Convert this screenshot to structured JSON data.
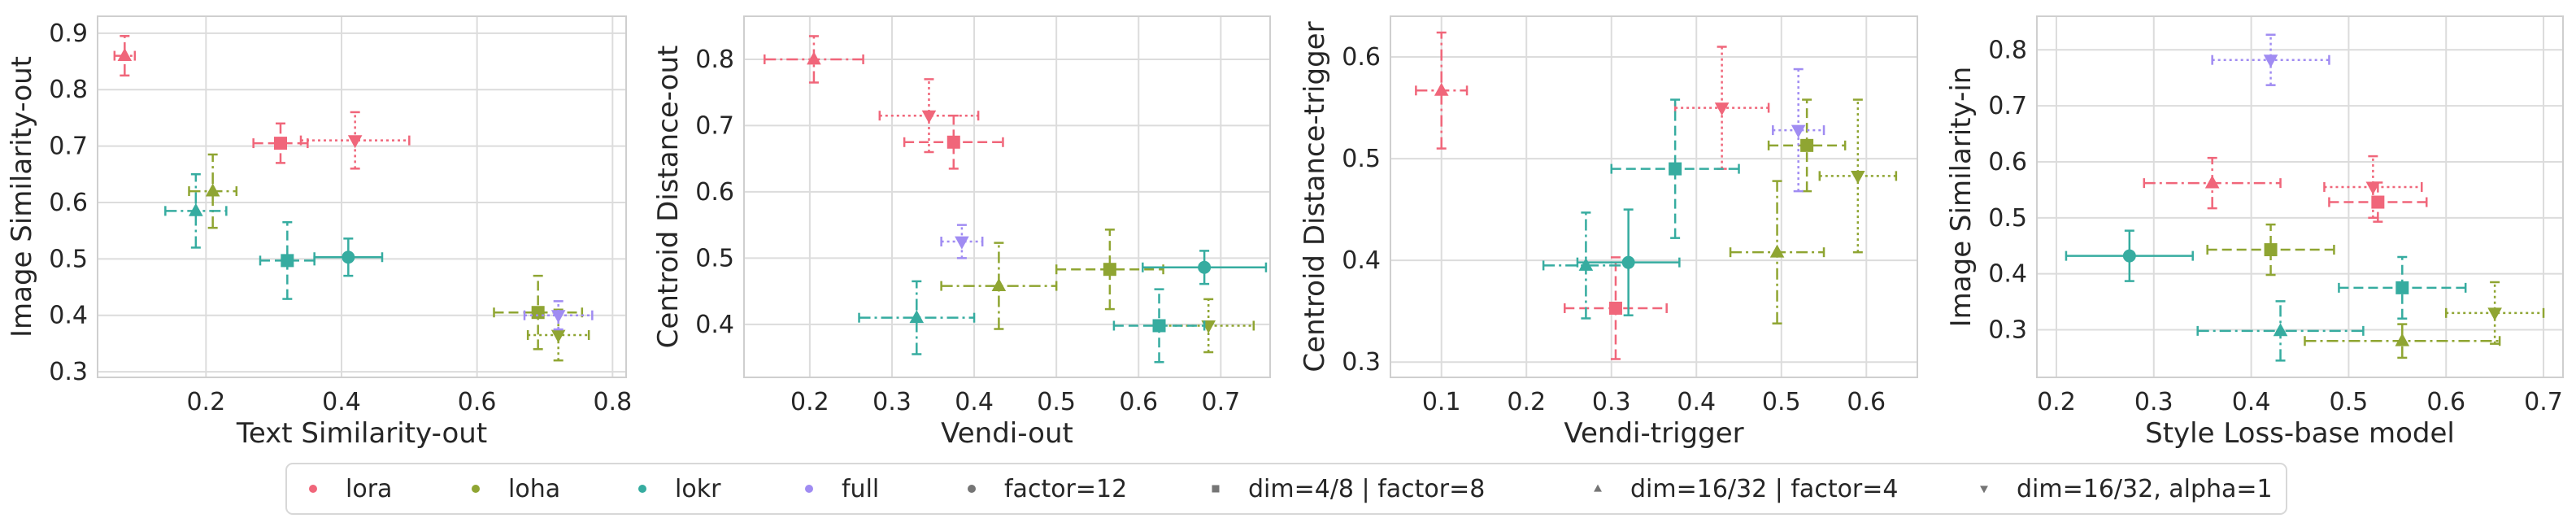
{
  "chart_data": [
    {
      "type": "scatter",
      "xlabel": "Text Similarity-out",
      "ylabel": "Image Similarity-out",
      "xlim": [
        0.04,
        0.82
      ],
      "ylim": [
        0.29,
        0.93
      ],
      "xticks": [
        0.2,
        0.4,
        0.6,
        0.8
      ],
      "yticks": [
        0.3,
        0.4,
        0.5,
        0.6,
        0.7,
        0.8,
        0.9
      ],
      "xtick_labels": [
        "0.2",
        "0.4",
        "0.6",
        "0.8"
      ],
      "ytick_labels": [
        "0.3",
        "0.4",
        "0.5",
        "0.6",
        "0.7",
        "0.8",
        "0.9"
      ],
      "grid": true,
      "points": [
        {
          "method": "lora",
          "config": "dim=16/32 | factor=4",
          "x": 0.08,
          "y": 0.86,
          "xerr": 0.015,
          "yerr": 0.035
        },
        {
          "method": "lora",
          "config": "dim=4/8 | factor=8",
          "x": 0.31,
          "y": 0.705,
          "xerr": 0.04,
          "yerr": 0.035
        },
        {
          "method": "lora",
          "config": "dim=16/32, alpha=1",
          "x": 0.42,
          "y": 0.71,
          "xerr": 0.08,
          "yerr": 0.05
        },
        {
          "method": "loha",
          "config": "dim=16/32 | factor=4",
          "x": 0.21,
          "y": 0.62,
          "xerr": 0.035,
          "yerr": 0.065
        },
        {
          "method": "loha",
          "config": "dim=4/8 | factor=8",
          "x": 0.69,
          "y": 0.405,
          "xerr": 0.065,
          "yerr": 0.065
        },
        {
          "method": "loha",
          "config": "dim=16/32, alpha=1",
          "x": 0.72,
          "y": 0.365,
          "xerr": 0.045,
          "yerr": 0.045
        },
        {
          "method": "lokr",
          "config": "dim=16/32 | factor=4",
          "x": 0.185,
          "y": 0.585,
          "xerr": 0.045,
          "yerr": 0.065
        },
        {
          "method": "lokr",
          "config": "dim=4/8 | factor=8",
          "x": 0.32,
          "y": 0.497,
          "xerr": 0.04,
          "yerr": 0.068
        },
        {
          "method": "lokr",
          "config": "factor=12",
          "x": 0.41,
          "y": 0.503,
          "xerr": 0.05,
          "yerr": 0.033
        },
        {
          "method": "full",
          "config": "dim=16/32, alpha=1",
          "x": 0.72,
          "y": 0.4,
          "xerr": 0.05,
          "yerr": 0.025
        }
      ]
    },
    {
      "type": "scatter",
      "xlabel": "Vendi-out",
      "ylabel": "Centroid Distance-out",
      "xlim": [
        0.12,
        0.76
      ],
      "ylim": [
        0.32,
        0.865
      ],
      "xticks": [
        0.2,
        0.3,
        0.4,
        0.5,
        0.6,
        0.7
      ],
      "yticks": [
        0.4,
        0.5,
        0.6,
        0.7,
        0.8
      ],
      "xtick_labels": [
        "0.2",
        "0.3",
        "0.4",
        "0.5",
        "0.6",
        "0.7"
      ],
      "ytick_labels": [
        "0.4",
        "0.5",
        "0.6",
        "0.7",
        "0.8"
      ],
      "grid": true,
      "points": [
        {
          "method": "lora",
          "config": "dim=16/32 | factor=4",
          "x": 0.205,
          "y": 0.8,
          "xerr": 0.06,
          "yerr": 0.035
        },
        {
          "method": "lora",
          "config": "dim=16/32, alpha=1",
          "x": 0.345,
          "y": 0.715,
          "xerr": 0.06,
          "yerr": 0.055
        },
        {
          "method": "lora",
          "config": "dim=4/8 | factor=8",
          "x": 0.375,
          "y": 0.675,
          "xerr": 0.06,
          "yerr": 0.04
        },
        {
          "method": "loha",
          "config": "dim=16/32 | factor=4",
          "x": 0.43,
          "y": 0.458,
          "xerr": 0.07,
          "yerr": 0.065
        },
        {
          "method": "loha",
          "config": "dim=4/8 | factor=8",
          "x": 0.565,
          "y": 0.483,
          "xerr": 0.065,
          "yerr": 0.06
        },
        {
          "method": "loha",
          "config": "dim=16/32, alpha=1",
          "x": 0.685,
          "y": 0.398,
          "xerr": 0.055,
          "yerr": 0.04
        },
        {
          "method": "lokr",
          "config": "dim=16/32 | factor=4",
          "x": 0.33,
          "y": 0.41,
          "xerr": 0.07,
          "yerr": 0.055
        },
        {
          "method": "lokr",
          "config": "dim=4/8 | factor=8",
          "x": 0.625,
          "y": 0.398,
          "xerr": 0.055,
          "yerr": 0.055
        },
        {
          "method": "lokr",
          "config": "factor=12",
          "x": 0.68,
          "y": 0.486,
          "xerr": 0.075,
          "yerr": 0.025
        },
        {
          "method": "full",
          "config": "dim=16/32, alpha=1",
          "x": 0.385,
          "y": 0.525,
          "xerr": 0.025,
          "yerr": 0.025
        }
      ]
    },
    {
      "type": "scatter",
      "xlabel": "Vendi-trigger",
      "ylabel": "Centroid Distance-trigger",
      "xlim": [
        0.04,
        0.66
      ],
      "ylim": [
        0.285,
        0.64
      ],
      "xticks": [
        0.1,
        0.2,
        0.3,
        0.4,
        0.5,
        0.6
      ],
      "yticks": [
        0.3,
        0.4,
        0.5,
        0.6
      ],
      "xtick_labels": [
        "0.1",
        "0.2",
        "0.3",
        "0.4",
        "0.5",
        "0.6"
      ],
      "ytick_labels": [
        "0.3",
        "0.4",
        "0.5",
        "0.6"
      ],
      "grid": true,
      "points": [
        {
          "method": "lora",
          "config": "dim=16/32 | factor=4",
          "x": 0.1,
          "y": 0.567,
          "xerr": 0.03,
          "yerr": 0.057
        },
        {
          "method": "lora",
          "config": "dim=16/32, alpha=1",
          "x": 0.43,
          "y": 0.55,
          "xerr": 0.055,
          "yerr": 0.06
        },
        {
          "method": "lora",
          "config": "dim=4/8 | factor=8",
          "x": 0.305,
          "y": 0.353,
          "xerr": 0.06,
          "yerr": 0.05
        },
        {
          "method": "loha",
          "config": "dim=16/32 | factor=4",
          "x": 0.495,
          "y": 0.408,
          "xerr": 0.055,
          "yerr": 0.07
        },
        {
          "method": "loha",
          "config": "dim=4/8 | factor=8",
          "x": 0.53,
          "y": 0.513,
          "xerr": 0.045,
          "yerr": 0.045
        },
        {
          "method": "loha",
          "config": "dim=16/32, alpha=1",
          "x": 0.59,
          "y": 0.483,
          "xerr": 0.045,
          "yerr": 0.075
        },
        {
          "method": "lokr",
          "config": "dim=16/32 | factor=4",
          "x": 0.27,
          "y": 0.395,
          "xerr": 0.05,
          "yerr": 0.052
        },
        {
          "method": "lokr",
          "config": "dim=4/8 | factor=8",
          "x": 0.375,
          "y": 0.49,
          "xerr": 0.075,
          "yerr": 0.068
        },
        {
          "method": "lokr",
          "config": "factor=12",
          "x": 0.32,
          "y": 0.398,
          "xerr": 0.06,
          "yerr": 0.052
        },
        {
          "method": "full",
          "config": "dim=16/32, alpha=1",
          "x": 0.52,
          "y": 0.528,
          "xerr": 0.03,
          "yerr": 0.06
        }
      ]
    },
    {
      "type": "scatter",
      "xlabel": "Style Loss-base model",
      "ylabel": "Image Similarity-in",
      "xlim": [
        0.18,
        0.72
      ],
      "ylim": [
        0.215,
        0.86
      ],
      "xticks": [
        0.2,
        0.3,
        0.4,
        0.5,
        0.6,
        0.7
      ],
      "yticks": [
        0.3,
        0.4,
        0.5,
        0.6,
        0.7,
        0.8
      ],
      "xtick_labels": [
        "0.2",
        "0.3",
        "0.4",
        "0.5",
        "0.6",
        "0.7"
      ],
      "ytick_labels": [
        "0.3",
        "0.4",
        "0.5",
        "0.6",
        "0.7",
        "0.8"
      ],
      "grid": true,
      "points": [
        {
          "method": "lora",
          "config": "dim=16/32 | factor=4",
          "x": 0.36,
          "y": 0.562,
          "xerr": 0.07,
          "yerr": 0.045
        },
        {
          "method": "lora",
          "config": "dim=16/32, alpha=1",
          "x": 0.525,
          "y": 0.555,
          "xerr": 0.05,
          "yerr": 0.055
        },
        {
          "method": "lora",
          "config": "dim=4/8 | factor=8",
          "x": 0.53,
          "y": 0.528,
          "xerr": 0.05,
          "yerr": 0.035
        },
        {
          "method": "loha",
          "config": "dim=4/8 | factor=8",
          "x": 0.42,
          "y": 0.443,
          "xerr": 0.065,
          "yerr": 0.045
        },
        {
          "method": "loha",
          "config": "dim=16/32 | factor=4",
          "x": 0.555,
          "y": 0.28,
          "xerr": 0.1,
          "yerr": 0.03
        },
        {
          "method": "loha",
          "config": "dim=16/32, alpha=1",
          "x": 0.65,
          "y": 0.33,
          "xerr": 0.05,
          "yerr": 0.055
        },
        {
          "method": "lokr",
          "config": "factor=12",
          "x": 0.275,
          "y": 0.432,
          "xerr": 0.065,
          "yerr": 0.045
        },
        {
          "method": "lokr",
          "config": "dim=16/32 | factor=4",
          "x": 0.43,
          "y": 0.298,
          "xerr": 0.085,
          "yerr": 0.053
        },
        {
          "method": "lokr",
          "config": "dim=4/8 | factor=8",
          "x": 0.555,
          "y": 0.375,
          "xerr": 0.065,
          "yerr": 0.055
        },
        {
          "method": "full",
          "config": "dim=16/32, alpha=1",
          "x": 0.42,
          "y": 0.782,
          "xerr": 0.06,
          "yerr": 0.045
        }
      ]
    }
  ],
  "legend": {
    "placement": "bottom-center",
    "methods": [
      {
        "name": "lora",
        "color": "#f0667a"
      },
      {
        "name": "loha",
        "color": "#8fa532"
      },
      {
        "name": "lokr",
        "color": "#36aca0"
      },
      {
        "name": "full",
        "color": "#a08cf2"
      }
    ],
    "configs": [
      {
        "name": "factor=12",
        "marker": "circle"
      },
      {
        "name": "dim=4/8 | factor=8",
        "marker": "square"
      },
      {
        "name": "dim=16/32 | factor=4",
        "marker": "triangle-up"
      },
      {
        "name": "dim=16/32, alpha=1",
        "marker": "triangle-down"
      }
    ],
    "config_marker_color": "#757575"
  },
  "style": {
    "grid_color": "#dcdcdc",
    "spine_color": "#cfcfcf",
    "config_dash": {
      "factor=12": "",
      "dim=4/8 | factor=8": "12 6",
      "dim=16/32 | factor=4": "14 5 3 5",
      "dim=16/32, alpha=1": "3 4"
    }
  }
}
